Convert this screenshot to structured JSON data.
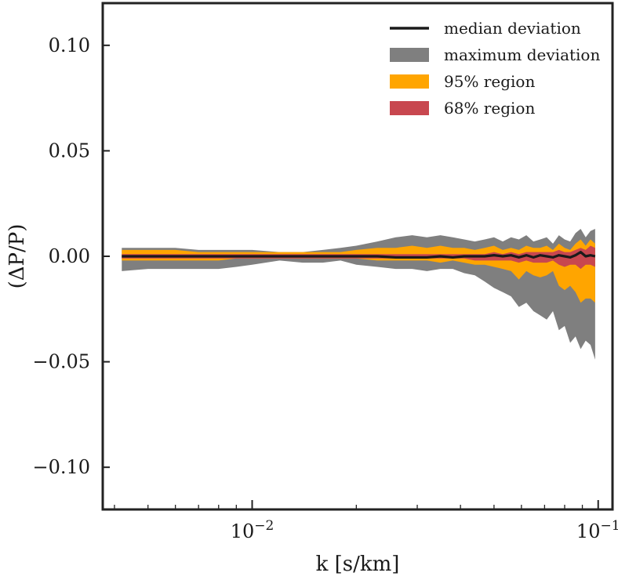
{
  "chart_data": {
    "type": "area",
    "title": "",
    "xlabel": "k [s/km]",
    "ylabel": "(ΔP/P)",
    "xscale": "log",
    "xlim": [
      0.0037,
      0.11
    ],
    "ylim": [
      -0.12,
      0.12
    ],
    "yticks": [
      -0.1,
      -0.05,
      0.0,
      0.05,
      0.1
    ],
    "ytick_labels": [
      "−0.10",
      "−0.05",
      "0.00",
      "0.05",
      "0.10"
    ],
    "xticks": [
      0.01,
      0.1
    ],
    "xtick_labels": [
      {
        "base": "10",
        "exp": "−2"
      },
      {
        "base": "10",
        "exp": "−1"
      }
    ],
    "legend_position": "top-right",
    "colors": {
      "max": "#7f7f7f",
      "r95": "#ffa500",
      "r68": "#c8474f",
      "median": "#1a1a1a",
      "frame": "#222222"
    },
    "x": [
      0.0042,
      0.005,
      0.006,
      0.007,
      0.008,
      0.009,
      0.01,
      0.012,
      0.014,
      0.016,
      0.018,
      0.02,
      0.023,
      0.026,
      0.029,
      0.032,
      0.035,
      0.038,
      0.041,
      0.044,
      0.047,
      0.05,
      0.053,
      0.056,
      0.059,
      0.062,
      0.065,
      0.068,
      0.071,
      0.074,
      0.077,
      0.08,
      0.083,
      0.086,
      0.089,
      0.092,
      0.095,
      0.098
    ],
    "series": [
      {
        "name": "maximum deviation",
        "kind": "band",
        "upper": [
          0.004,
          0.004,
          0.004,
          0.003,
          0.003,
          0.003,
          0.003,
          0.002,
          0.002,
          0.003,
          0.004,
          0.005,
          0.007,
          0.009,
          0.01,
          0.009,
          0.01,
          0.009,
          0.008,
          0.007,
          0.008,
          0.009,
          0.007,
          0.009,
          0.008,
          0.01,
          0.007,
          0.008,
          0.009,
          0.006,
          0.01,
          0.008,
          0.007,
          0.011,
          0.013,
          0.009,
          0.012,
          0.013
        ],
        "lower": [
          -0.007,
          -0.006,
          -0.006,
          -0.006,
          -0.006,
          -0.005,
          -0.004,
          -0.002,
          -0.003,
          -0.003,
          -0.002,
          -0.004,
          -0.005,
          -0.006,
          -0.006,
          -0.007,
          -0.006,
          -0.006,
          -0.008,
          -0.009,
          -0.012,
          -0.015,
          -0.017,
          -0.019,
          -0.024,
          -0.022,
          -0.026,
          -0.028,
          -0.03,
          -0.026,
          -0.035,
          -0.033,
          -0.041,
          -0.038,
          -0.044,
          -0.04,
          -0.042,
          -0.049
        ]
      },
      {
        "name": "95% region",
        "kind": "band",
        "upper": [
          0.003,
          0.003,
          0.003,
          0.002,
          0.002,
          0.002,
          0.002,
          0.002,
          0.002,
          0.002,
          0.002,
          0.003,
          0.004,
          0.004,
          0.005,
          0.004,
          0.005,
          0.004,
          0.004,
          0.003,
          0.004,
          0.005,
          0.003,
          0.004,
          0.003,
          0.005,
          0.004,
          0.004,
          0.005,
          0.003,
          0.006,
          0.004,
          0.003,
          0.006,
          0.008,
          0.005,
          0.008,
          0.006
        ],
        "lower": [
          -0.002,
          -0.002,
          -0.002,
          -0.002,
          -0.002,
          -0.001,
          -0.001,
          -0.001,
          -0.001,
          -0.001,
          -0.001,
          -0.001,
          -0.002,
          -0.002,
          -0.002,
          -0.002,
          -0.003,
          -0.002,
          -0.003,
          -0.004,
          -0.004,
          -0.005,
          -0.006,
          -0.007,
          -0.011,
          -0.007,
          -0.009,
          -0.01,
          -0.009,
          -0.007,
          -0.014,
          -0.016,
          -0.014,
          -0.017,
          -0.022,
          -0.02,
          -0.02,
          -0.022
        ]
      },
      {
        "name": "68% region",
        "kind": "band",
        "upper": [
          0.001,
          0.001,
          0.001,
          0.001,
          0.001,
          0.001,
          0.001,
          0.001,
          0.001,
          0.001,
          0.001,
          0.001,
          0.001,
          0.001,
          0.001,
          0.001,
          0.001,
          0.001,
          0.001,
          0.001,
          0.001,
          0.002,
          0.001,
          0.002,
          0.001,
          0.002,
          0.002,
          0.002,
          0.002,
          0.002,
          0.003,
          0.002,
          0.002,
          0.003,
          0.004,
          0.003,
          0.005,
          0.004
        ],
        "lower": [
          -0.001,
          -0.001,
          -0.001,
          -0.001,
          -0.001,
          -0.001,
          -0.001,
          -0.001,
          -0.001,
          -0.001,
          -0.001,
          -0.001,
          -0.001,
          -0.001,
          -0.001,
          -0.001,
          -0.001,
          -0.001,
          -0.001,
          -0.002,
          -0.002,
          -0.002,
          -0.002,
          -0.002,
          -0.003,
          -0.002,
          -0.003,
          -0.003,
          -0.003,
          -0.002,
          -0.004,
          -0.005,
          -0.004,
          -0.004,
          -0.006,
          -0.004,
          -0.004,
          -0.005
        ]
      },
      {
        "name": "median deviation",
        "kind": "line",
        "values": [
          0.0,
          0.0,
          0.0,
          0.0,
          0.0,
          0.0,
          0.0,
          0.0,
          0.0,
          0.0,
          0.0,
          0.0,
          0.0,
          -0.0005,
          -0.0005,
          -0.0005,
          0.0,
          -0.0005,
          0.0,
          0.0,
          0.0,
          0.0005,
          0.0,
          0.0005,
          -0.0005,
          0.0005,
          -0.0005,
          0.0005,
          0.0,
          -0.0005,
          0.0005,
          0.0,
          -0.0005,
          0.0005,
          0.002,
          0.0,
          0.0005,
          0.0
        ]
      }
    ],
    "legend": [
      {
        "label": "median deviation",
        "swatch": "line",
        "color_key": "median"
      },
      {
        "label": "maximum deviation",
        "swatch": "patch",
        "color_key": "max"
      },
      {
        "label": "95% region",
        "swatch": "patch",
        "color_key": "r95"
      },
      {
        "label": "68% region",
        "swatch": "patch",
        "color_key": "r68"
      }
    ]
  }
}
